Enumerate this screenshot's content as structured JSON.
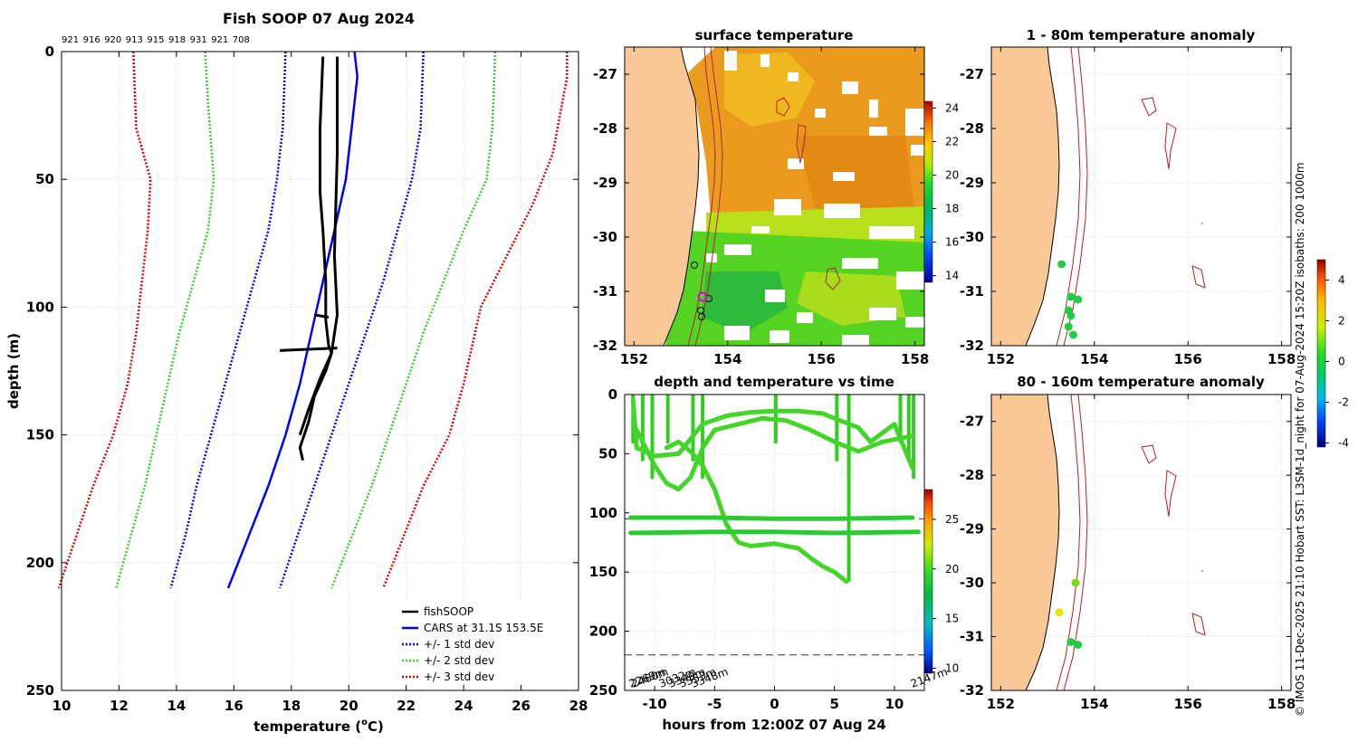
{
  "figure_title": "Fish SOOP 07 Aug 2024",
  "side_note": "© IMOS 11-Dec-2025 21:10 Hobart SST: L3SM-1d_night for 07-Aug-2024 15:20Z isobaths: 200  1000m",
  "colors": {
    "obs": "#000000",
    "cars": "#0000ff",
    "std1": "#0000ff",
    "std2": "#33cc33",
    "std3": "#dd0000",
    "land": "#f9c896",
    "isobath": "#b22222"
  },
  "chart_data": [
    {
      "id": "profile",
      "type": "line",
      "title": "Fish SOOP 07 Aug 2024",
      "xlabel": "temperature (°C)",
      "xlabel_main": "temperature (",
      "xlabel_unit": "o",
      "xlabel_end": "C)",
      "ylabel": "depth (m)",
      "xlim": [
        10,
        28
      ],
      "ylim": [
        250,
        0
      ],
      "xticks": [
        "10",
        "12",
        "14",
        "16",
        "18",
        "20",
        "22",
        "24",
        "26",
        "28"
      ],
      "yticks": [
        "0",
        "50",
        "100",
        "150",
        "200",
        "250"
      ],
      "grid": true,
      "top_labels": [
        "921",
        "916",
        "920",
        "913",
        "915",
        "918",
        "931",
        "921",
        "708"
      ],
      "legend_position": "bottom-right",
      "legend": [
        "fishSOOP",
        "CARS at 31.1S 153.5E",
        "+/- 1 std dev",
        "+/- 2 std dev",
        "+/- 3 std dev"
      ],
      "series": [
        {
          "name": "CARS at 31.1S 153.5E",
          "style": "solid",
          "color": "#0000ff",
          "points": [
            [
              20.2,
              0
            ],
            [
              20.3,
              10
            ],
            [
              20.1,
              30
            ],
            [
              19.9,
              50
            ],
            [
              19.5,
              70
            ],
            [
              19.1,
              90
            ],
            [
              18.7,
              110
            ],
            [
              18.3,
              130
            ],
            [
              17.8,
              150
            ],
            [
              17.2,
              170
            ],
            [
              16.5,
              190
            ],
            [
              15.8,
              210
            ]
          ]
        },
        {
          "name": "-1 std",
          "style": "dotted",
          "color": "#0000ff",
          "points": [
            [
              17.8,
              0
            ],
            [
              17.7,
              30
            ],
            [
              17.5,
              50
            ],
            [
              17.2,
              70
            ],
            [
              16.7,
              90
            ],
            [
              16.2,
              110
            ],
            [
              15.7,
              130
            ],
            [
              15.2,
              150
            ],
            [
              14.7,
              170
            ],
            [
              14.3,
              190
            ],
            [
              13.8,
              210
            ]
          ]
        },
        {
          "name": "+1 std",
          "style": "dotted",
          "color": "#0000ff",
          "points": [
            [
              22.6,
              0
            ],
            [
              22.5,
              30
            ],
            [
              22.2,
              50
            ],
            [
              21.7,
              70
            ],
            [
              21.2,
              90
            ],
            [
              20.6,
              110
            ],
            [
              20.0,
              130
            ],
            [
              19.4,
              150
            ],
            [
              18.8,
              170
            ],
            [
              18.2,
              190
            ],
            [
              17.6,
              210
            ]
          ]
        },
        {
          "name": "-2 std",
          "style": "dotted",
          "color": "#33cc33",
          "points": [
            [
              15.0,
              0
            ],
            [
              15.1,
              20
            ],
            [
              15.3,
              50
            ],
            [
              15.1,
              70
            ],
            [
              14.6,
              90
            ],
            [
              14.1,
              110
            ],
            [
              13.7,
              130
            ],
            [
              13.3,
              150
            ],
            [
              12.9,
              170
            ],
            [
              12.4,
              190
            ],
            [
              11.9,
              210
            ]
          ]
        },
        {
          "name": "+2 std",
          "style": "dotted",
          "color": "#33cc33",
          "points": [
            [
              25.1,
              0
            ],
            [
              25.0,
              30
            ],
            [
              24.8,
              50
            ],
            [
              24.0,
              70
            ],
            [
              23.3,
              90
            ],
            [
              22.6,
              110
            ],
            [
              22.0,
              130
            ],
            [
              21.4,
              150
            ],
            [
              20.8,
              170
            ],
            [
              20.1,
              190
            ],
            [
              19.4,
              210
            ]
          ]
        },
        {
          "name": "-3 std",
          "style": "dotted",
          "color": "#dd0000",
          "points": [
            [
              12.5,
              0
            ],
            [
              12.6,
              30
            ],
            [
              13.1,
              50
            ],
            [
              13.0,
              70
            ],
            [
              12.8,
              90
            ],
            [
              12.6,
              110
            ],
            [
              12.3,
              130
            ],
            [
              11.8,
              150
            ],
            [
              11.1,
              170
            ],
            [
              10.5,
              190
            ],
            [
              9.9,
              210
            ]
          ]
        },
        {
          "name": "+3 std",
          "style": "dotted",
          "color": "#dd0000",
          "points": [
            [
              27.6,
              0
            ],
            [
              27.6,
              10
            ],
            [
              27.1,
              40
            ],
            [
              26.4,
              60
            ],
            [
              25.5,
              80
            ],
            [
              24.6,
              100
            ],
            [
              24.0,
              130
            ],
            [
              23.5,
              150
            ],
            [
              22.6,
              170
            ],
            [
              21.9,
              190
            ],
            [
              21.2,
              210
            ]
          ]
        },
        {
          "name": "fishSOOP",
          "style": "thick",
          "color": "#000000",
          "points": [
            [
              19.1,
              2
            ],
            [
              19.0,
              30
            ],
            [
              19.0,
              55
            ],
            [
              19.1,
              70
            ],
            [
              19.2,
              90
            ],
            [
              19.2,
              105
            ],
            [
              19.3,
              115
            ],
            [
              19.4,
              118
            ],
            [
              19.2,
              125
            ],
            [
              18.8,
              135
            ],
            [
              18.6,
              145
            ],
            [
              18.3,
              155
            ],
            [
              18.4,
              160
            ]
          ]
        },
        {
          "name": "fishSOOP",
          "style": "thick",
          "color": "#000000",
          "points": [
            [
              19.6,
              2
            ],
            [
              19.6,
              40
            ],
            [
              19.5,
              80
            ],
            [
              19.6,
              103
            ],
            [
              19.4,
              118
            ],
            [
              19.0,
              128
            ],
            [
              18.6,
              140
            ],
            [
              18.3,
              150
            ]
          ]
        },
        {
          "name": "fishSOOP",
          "style": "thick",
          "color": "#000000",
          "points": [
            [
              17.6,
              117
            ],
            [
              19.6,
              116
            ]
          ]
        },
        {
          "name": "fishSOOP",
          "style": "thick",
          "color": "#000000",
          "points": [
            [
              18.8,
              103
            ],
            [
              19.3,
              104
            ]
          ]
        }
      ]
    },
    {
      "id": "sst",
      "type": "heatmap",
      "title": "surface temperature",
      "xlim": [
        151.8,
        158.2
      ],
      "ylim": [
        -32,
        -26.5
      ],
      "xticks": [
        "152",
        "154",
        "156",
        "158"
      ],
      "yticks": [
        "-27",
        "-28",
        "-29",
        "-30",
        "-31",
        "-32"
      ],
      "colorbar_ticks": [
        "14",
        "16",
        "18",
        "20",
        "22",
        "24"
      ],
      "colorbar_range": [
        13.6,
        24.4
      ]
    },
    {
      "id": "anom1",
      "type": "scatter",
      "title": "1 - 80m temperature anomaly",
      "xlim": [
        151.8,
        158.2
      ],
      "ylim": [
        -32,
        -26.5
      ],
      "xticks": [
        "152",
        "154",
        "156",
        "158"
      ],
      "yticks": [
        "-27",
        "-28",
        "-29",
        "-30",
        "-31",
        "-32"
      ],
      "colorbar_ticks": [
        "-4",
        "-2",
        "0",
        "2",
        "4"
      ],
      "colorbar_range": [
        -4.2,
        5.0
      ],
      "points": [
        {
          "lon": 153.3,
          "lat": -30.5,
          "anom": 0.0
        },
        {
          "lon": 153.5,
          "lat": -31.1,
          "anom": 0.0
        },
        {
          "lon": 153.65,
          "lat": -31.15,
          "anom": 0.1
        },
        {
          "lon": 153.45,
          "lat": -31.35,
          "anom": 0.0
        },
        {
          "lon": 153.5,
          "lat": -31.45,
          "anom": 0.2
        },
        {
          "lon": 153.45,
          "lat": -31.65,
          "anom": 0.0
        },
        {
          "lon": 153.55,
          "lat": -31.8,
          "anom": 0.2
        }
      ]
    },
    {
      "id": "anom2",
      "type": "scatter",
      "title": "80 - 160m temperature anomaly",
      "xlim": [
        151.8,
        158.2
      ],
      "ylim": [
        -32,
        -26.5
      ],
      "xticks": [
        "152",
        "154",
        "156",
        "158"
      ],
      "yticks": [
        "-27",
        "-28",
        "-29",
        "-30",
        "-31",
        "-32"
      ],
      "points": [
        {
          "lon": 153.6,
          "lat": -30.0,
          "anom": 1.5
        },
        {
          "lon": 153.25,
          "lat": -30.55,
          "anom": 3.0
        },
        {
          "lon": 153.5,
          "lat": -31.1,
          "anom": 0.5
        },
        {
          "lon": 153.65,
          "lat": -31.15,
          "anom": 0.3
        }
      ]
    },
    {
      "id": "timeseries",
      "type": "line",
      "title": "depth and temperature vs time",
      "xlabel": "hours from 12:00Z 07 Aug 24",
      "xlim": [
        -12.5,
        12.5
      ],
      "ylim": [
        250,
        0
      ],
      "xticks": [
        "-10",
        "-5",
        "0",
        "5",
        "10"
      ],
      "yticks": [
        "0",
        "50",
        "100",
        "150",
        "200",
        "250"
      ],
      "colorbar_ticks": [
        "10",
        "15",
        "20",
        "25"
      ],
      "colorbar_range": [
        9.5,
        28
      ],
      "reference_lines": [
        105,
        220
      ],
      "bathymetry_labels": [
        "2269m",
        "2460m",
        "3032m",
        "3349m",
        "3353m",
        "3348m",
        "2147m"
      ],
      "tracks": [
        [
          [
            -11.8,
            5
          ],
          [
            -11.5,
            45
          ],
          [
            -10,
            52
          ],
          [
            -8,
            50
          ],
          [
            -6,
            25
          ],
          [
            -4,
            18
          ],
          [
            -2,
            15
          ],
          [
            0,
            14
          ],
          [
            2,
            14
          ],
          [
            4,
            16
          ],
          [
            5.5,
            22
          ],
          [
            7,
            28
          ],
          [
            8,
            40
          ],
          [
            10,
            25
          ],
          [
            11.5,
            62
          ]
        ],
        [
          [
            -11.5,
            30
          ],
          [
            -10,
            60
          ],
          [
            -9,
            75
          ],
          [
            -8,
            80
          ],
          [
            -7,
            70
          ],
          [
            -6,
            45
          ],
          [
            -5,
            30
          ],
          [
            -3,
            25
          ],
          [
            -1,
            20
          ],
          [
            1,
            22
          ],
          [
            3,
            30
          ],
          [
            5,
            40
          ],
          [
            7,
            48
          ],
          [
            9,
            40
          ],
          [
            11.5,
            35
          ]
        ],
        [
          [
            -9,
            45
          ],
          [
            -8,
            40
          ],
          [
            -7,
            48
          ],
          [
            -6,
            60
          ],
          [
            -5,
            80
          ],
          [
            -4,
            110
          ],
          [
            -3,
            125
          ],
          [
            -2,
            128
          ],
          [
            -1,
            127
          ],
          [
            0,
            126
          ],
          [
            1,
            128
          ],
          [
            2,
            130
          ],
          [
            3,
            138
          ],
          [
            4,
            145
          ],
          [
            5,
            150
          ],
          [
            6,
            158
          ]
        ],
        [
          [
            -12,
            104
          ],
          [
            -5,
            104
          ],
          [
            0,
            105
          ],
          [
            5,
            105
          ],
          [
            11.5,
            104
          ]
        ],
        [
          [
            -12,
            117
          ],
          [
            -5,
            116
          ],
          [
            0,
            116
          ],
          [
            5,
            117
          ],
          [
            12,
            116
          ]
        ]
      ]
    }
  ]
}
